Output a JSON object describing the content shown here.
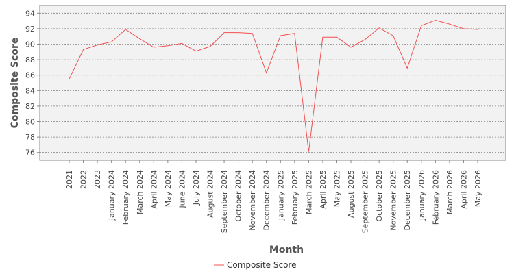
{
  "chart_data": {
    "type": "line",
    "xlabel": "Month",
    "ylabel": "Composite Score",
    "ylim": [
      75,
      95
    ],
    "yticks": [
      76,
      78,
      80,
      82,
      84,
      86,
      88,
      90,
      92,
      94
    ],
    "grid": true,
    "legend_position": "bottom-center",
    "categories": [
      "2021",
      "2022",
      "2023",
      "January 2024",
      "February 2024",
      "March 2024",
      "April 2024",
      "May 2024",
      "June 2024",
      "July 2024",
      "August 2024",
      "September 2024",
      "October 2024",
      "November 2024",
      "December 2024",
      "January 2025",
      "February 2025",
      "March 2025",
      "April 2025",
      "May 2025",
      "August 2025",
      "September 2025",
      "October 2025",
      "November 2025",
      "December 2025",
      "January 2026",
      "February 2026",
      "March 2026",
      "April 2026",
      "May 2026"
    ],
    "series": [
      {
        "name": "Composite Score",
        "color": "#f05050",
        "values": [
          85.5,
          89.3,
          89.9,
          90.3,
          91.9,
          90.7,
          89.6,
          89.8,
          90.1,
          89.1,
          89.7,
          91.5,
          91.5,
          91.4,
          86.3,
          91.1,
          91.4,
          76.1,
          90.9,
          90.9,
          89.6,
          90.6,
          92.1,
          91.1,
          86.9,
          92.4,
          93.1,
          92.6,
          92.0,
          91.9
        ]
      }
    ]
  },
  "colors": {
    "plot_background": "#f2f2f2",
    "plot_border": "#888888",
    "gridline": "#808080"
  }
}
